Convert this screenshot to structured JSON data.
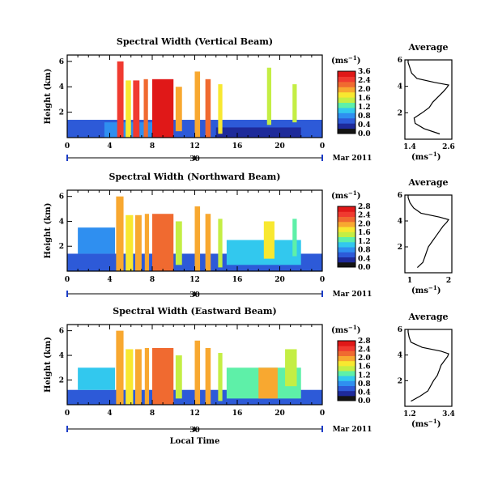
{
  "chart_data": {
    "type": "heatmap",
    "figure_xlabel": "Local Time",
    "time_ticks": [
      "0",
      "4",
      "8",
      "12",
      "16",
      "20",
      "0"
    ],
    "date_tick": "30",
    "date_label": "Mar 2011",
    "ylabel": "Height (km)",
    "height_ticks": [
      "6",
      "4",
      "2"
    ],
    "colorbar": {
      "unit_label": "(ms",
      "unit_exponent": "−1",
      "unit_close": ")",
      "colors": [
        "#141414",
        "#1e2a9a",
        "#2d5ad8",
        "#2f8ff0",
        "#32c8ee",
        "#5ef0a8",
        "#c4ee44",
        "#f8e830",
        "#f8a830",
        "#f06a30",
        "#f03a30",
        "#e01818"
      ]
    },
    "panels": [
      {
        "title": "Spectral Width (Vertical Beam)",
        "cb_ticks": [
          "3.6",
          "2.4",
          "2.0",
          "1.6",
          "1.2",
          "0.8",
          "0.4",
          "0.0"
        ],
        "avg_title": "Average",
        "avg_xticks": [
          "1.4",
          "2.6"
        ],
        "avg_yticks": [
          "6",
          "4",
          "2"
        ],
        "avg_xlabel_base": "(ms",
        "avg_xlabel_exp": "−1",
        "avg_xlabel_close": ")",
        "avg_profile": {
          "heights": [
            0.4,
            0.8,
            1.2,
            1.6,
            2.0,
            2.4,
            2.8,
            3.2,
            3.6,
            3.9,
            4.1,
            4.3,
            4.6,
            5.0,
            5.4,
            5.8,
            6.0
          ],
          "values": [
            2.35,
            1.9,
            1.65,
            1.62,
            1.85,
            2.05,
            2.15,
            2.3,
            2.45,
            2.55,
            2.6,
            2.2,
            1.7,
            1.55,
            1.5,
            1.45,
            1.45
          ]
        },
        "blocks": [
          {
            "t0": 0.0,
            "t1": 24.0,
            "h0": 0.0,
            "h1": 1.4,
            "v": 0.6
          },
          {
            "t0": 3.5,
            "t1": 10.0,
            "h0": 0.0,
            "h1": 1.2,
            "v": 1.0
          },
          {
            "t0": 14.0,
            "t1": 22.0,
            "h0": 0.0,
            "h1": 0.8,
            "v": 0.3
          },
          {
            "t0": 4.7,
            "t1": 5.3,
            "h0": 0.0,
            "h1": 6.0,
            "v": 3.0
          },
          {
            "t0": 5.5,
            "t1": 6.0,
            "h0": 0.0,
            "h1": 4.5,
            "v": 2.2
          },
          {
            "t0": 6.2,
            "t1": 6.8,
            "h0": 0.0,
            "h1": 4.5,
            "v": 3.0
          },
          {
            "t0": 7.2,
            "t1": 7.6,
            "h0": 0.0,
            "h1": 4.6,
            "v": 2.8
          },
          {
            "t0": 8.0,
            "t1": 10.0,
            "h0": 0.0,
            "h1": 4.6,
            "v": 3.4
          },
          {
            "t0": 10.2,
            "t1": 10.8,
            "h0": 0.5,
            "h1": 4.0,
            "v": 2.4
          },
          {
            "t0": 12.0,
            "t1": 12.5,
            "h0": 0.0,
            "h1": 5.2,
            "v": 2.6
          },
          {
            "t0": 13.0,
            "t1": 13.5,
            "h0": 0.0,
            "h1": 4.6,
            "v": 2.8
          },
          {
            "t0": 14.2,
            "t1": 14.6,
            "h0": 0.3,
            "h1": 4.2,
            "v": 2.2
          },
          {
            "t0": 18.8,
            "t1": 19.2,
            "h0": 1.0,
            "h1": 5.5,
            "v": 1.8
          },
          {
            "t0": 21.2,
            "t1": 21.6,
            "h0": 1.2,
            "h1": 4.2,
            "v": 2.0
          }
        ]
      },
      {
        "title": "Spectral Width (Northward Beam)",
        "cb_ticks": [
          "2.8",
          "2.4",
          "2.0",
          "1.6",
          "1.2",
          "0.8",
          "0.4",
          "0.0"
        ],
        "avg_title": "Average",
        "avg_xticks": [
          "1",
          "2"
        ],
        "avg_yticks": [
          "6",
          "4",
          "2"
        ],
        "avg_xlabel_base": "(ms",
        "avg_xlabel_exp": "−1",
        "avg_xlabel_close": ")",
        "avg_profile": {
          "heights": [
            0.4,
            0.8,
            1.2,
            1.6,
            2.0,
            2.4,
            2.8,
            3.2,
            3.6,
            3.9,
            4.1,
            4.3,
            4.6,
            5.0,
            5.4,
            5.8,
            6.0
          ],
          "values": [
            1.3,
            1.45,
            1.5,
            1.55,
            1.6,
            1.7,
            1.8,
            1.9,
            2.0,
            2.1,
            2.15,
            1.9,
            1.4,
            1.2,
            1.1,
            1.05,
            1.05
          ]
        },
        "blocks": [
          {
            "t0": 0.0,
            "t1": 24.0,
            "h0": 0.0,
            "h1": 1.4,
            "v": 0.7
          },
          {
            "t0": 1.0,
            "t1": 4.5,
            "h0": 1.4,
            "h1": 3.5,
            "v": 1.0
          },
          {
            "t0": 15.0,
            "t1": 22.0,
            "h0": 0.5,
            "h1": 2.5,
            "v": 1.2
          },
          {
            "t0": 4.6,
            "t1": 5.3,
            "h0": 0.0,
            "h1": 6.0,
            "v": 2.6
          },
          {
            "t0": 5.5,
            "t1": 6.2,
            "h0": 0.0,
            "h1": 4.5,
            "v": 2.2
          },
          {
            "t0": 6.4,
            "t1": 7.0,
            "h0": 0.0,
            "h1": 4.5,
            "v": 2.6
          },
          {
            "t0": 7.3,
            "t1": 7.7,
            "h0": 0.0,
            "h1": 4.6,
            "v": 2.4
          },
          {
            "t0": 8.0,
            "t1": 10.0,
            "h0": 0.0,
            "h1": 4.6,
            "v": 2.8
          },
          {
            "t0": 10.2,
            "t1": 10.8,
            "h0": 0.5,
            "h1": 4.0,
            "v": 2.0
          },
          {
            "t0": 12.0,
            "t1": 12.5,
            "h0": 0.0,
            "h1": 5.2,
            "v": 2.4
          },
          {
            "t0": 13.0,
            "t1": 13.5,
            "h0": 0.0,
            "h1": 4.6,
            "v": 2.6
          },
          {
            "t0": 14.2,
            "t1": 14.6,
            "h0": 0.3,
            "h1": 4.2,
            "v": 2.0
          },
          {
            "t0": 18.5,
            "t1": 19.5,
            "h0": 1.0,
            "h1": 4.0,
            "v": 2.2
          },
          {
            "t0": 21.2,
            "t1": 21.6,
            "h0": 1.2,
            "h1": 4.2,
            "v": 1.6
          }
        ]
      },
      {
        "title": "Spectral Width (Eastward Beam)",
        "cb_ticks": [
          "2.8",
          "2.4",
          "2.0",
          "1.6",
          "1.2",
          "0.8",
          "0.4",
          "0.0"
        ],
        "avg_title": "Average",
        "avg_xticks": [
          "1.2",
          "3.4"
        ],
        "avg_yticks": [
          "6",
          "4",
          "2"
        ],
        "avg_xlabel_base": "(ms",
        "avg_xlabel_exp": "−1",
        "avg_xlabel_close": ")",
        "avg_profile": {
          "heights": [
            0.4,
            0.8,
            1.2,
            1.6,
            2.0,
            2.4,
            2.8,
            3.2,
            3.6,
            3.9,
            4.1,
            4.3,
            4.6,
            5.0,
            5.4,
            5.8,
            6.0
          ],
          "values": [
            1.4,
            1.9,
            2.3,
            2.45,
            2.6,
            2.8,
            2.9,
            3.0,
            3.2,
            3.35,
            3.4,
            3.0,
            2.0,
            1.4,
            1.3,
            1.25,
            1.25
          ]
        },
        "blocks": [
          {
            "t0": 0.0,
            "t1": 24.0,
            "h0": 0.0,
            "h1": 1.2,
            "v": 0.8
          },
          {
            "t0": 1.0,
            "t1": 4.5,
            "h0": 1.2,
            "h1": 3.0,
            "v": 1.2
          },
          {
            "t0": 15.0,
            "t1": 22.0,
            "h0": 0.5,
            "h1": 3.0,
            "v": 1.6
          },
          {
            "t0": 4.6,
            "t1": 5.3,
            "h0": 0.0,
            "h1": 6.0,
            "v": 2.6
          },
          {
            "t0": 5.5,
            "t1": 6.2,
            "h0": 0.0,
            "h1": 4.5,
            "v": 2.2
          },
          {
            "t0": 6.4,
            "t1": 7.0,
            "h0": 0.0,
            "h1": 4.5,
            "v": 2.6
          },
          {
            "t0": 7.3,
            "t1": 7.7,
            "h0": 0.0,
            "h1": 4.6,
            "v": 2.4
          },
          {
            "t0": 8.0,
            "t1": 10.0,
            "h0": 0.0,
            "h1": 4.6,
            "v": 2.8
          },
          {
            "t0": 10.2,
            "t1": 10.8,
            "h0": 0.5,
            "h1": 4.0,
            "v": 2.0
          },
          {
            "t0": 12.0,
            "t1": 12.5,
            "h0": 0.0,
            "h1": 5.2,
            "v": 2.4
          },
          {
            "t0": 13.0,
            "t1": 13.5,
            "h0": 0.0,
            "h1": 4.6,
            "v": 2.6
          },
          {
            "t0": 14.2,
            "t1": 14.6,
            "h0": 0.3,
            "h1": 4.2,
            "v": 2.0
          },
          {
            "t0": 18.0,
            "t1": 19.8,
            "h0": 0.5,
            "h1": 3.0,
            "v": 2.4
          },
          {
            "t0": 20.5,
            "t1": 21.6,
            "h0": 1.5,
            "h1": 4.5,
            "v": 1.8
          }
        ]
      }
    ]
  }
}
